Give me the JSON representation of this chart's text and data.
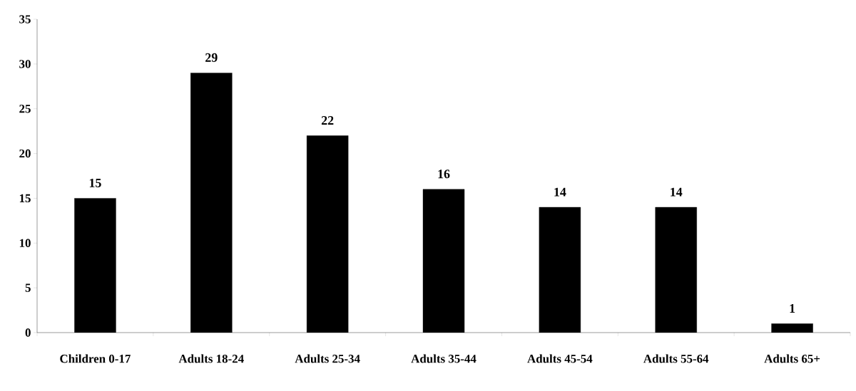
{
  "chart_data": {
    "type": "bar",
    "categories": [
      "Children 0-17",
      "Adults 18-24",
      "Adults 25-34",
      "Adults 35-44",
      "Adults 45-54",
      "Adults 55-64",
      "Adults 65+"
    ],
    "values": [
      15,
      29,
      22,
      16,
      14,
      14,
      1
    ],
    "color": "#000000",
    "ylim": [
      0,
      35
    ],
    "yticks": [
      0,
      5,
      10,
      15,
      20,
      25,
      30,
      35
    ],
    "data_labels": true,
    "grid": false
  }
}
